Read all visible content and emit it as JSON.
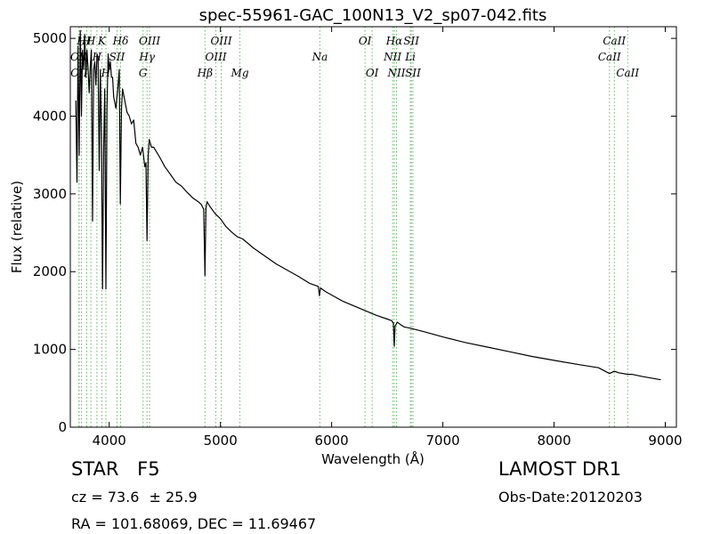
{
  "chart_data": {
    "type": "line",
    "title": "spec-55961-GAC_100N13_V2_sp07-042.fits",
    "xlabel": "Wavelength (Å)",
    "ylabel": "Flux (relative)",
    "xlim": [
      3650,
      9100
    ],
    "ylim": [
      0,
      5150
    ],
    "xticks": [
      4000,
      5000,
      6000,
      7000,
      8000,
      9000
    ],
    "yticks": [
      0,
      1000,
      2000,
      3000,
      4000,
      5000
    ],
    "grid": false,
    "series": [
      {
        "color": "#000000",
        "x": [
          3700,
          3710,
          3720,
          3730,
          3740,
          3750,
          3760,
          3770,
          3780,
          3790,
          3800,
          3810,
          3820,
          3830,
          3840,
          3850,
          3860,
          3870,
          3880,
          3890,
          3900,
          3910,
          3920,
          3930,
          3940,
          3950,
          3960,
          3970,
          3980,
          3990,
          4000,
          4010,
          4020,
          4030,
          4040,
          4060,
          4080,
          4090,
          4100,
          4110,
          4120,
          4140,
          4160,
          4180,
          4200,
          4220,
          4240,
          4260,
          4280,
          4300,
          4320,
          4330,
          4340,
          4350,
          4360,
          4380,
          4400,
          4450,
          4500,
          4550,
          4600,
          4650,
          4700,
          4750,
          4800,
          4830,
          4850,
          4861,
          4870,
          4880,
          4900,
          4950,
          5000,
          5050,
          5100,
          5150,
          5200,
          5300,
          5400,
          5500,
          5600,
          5700,
          5800,
          5880,
          5890,
          5900,
          5950,
          6000,
          6100,
          6200,
          6300,
          6400,
          6500,
          6540,
          6555,
          6563,
          6570,
          6590,
          6620,
          6650,
          6700,
          6800,
          6900,
          7000,
          7200,
          7400,
          7600,
          7800,
          8000,
          8200,
          8400,
          8498,
          8542,
          8580,
          8662,
          8700,
          8800,
          8960
        ],
        "values": [
          4200,
          3150,
          4900,
          3500,
          5100,
          4000,
          4850,
          4600,
          5050,
          4500,
          4850,
          4600,
          4300,
          4650,
          4850,
          2650,
          4600,
          4700,
          4400,
          4800,
          4750,
          3300,
          4600,
          3750,
          1780,
          3600,
          4350,
          1780,
          4100,
          4800,
          4600,
          4700,
          4500,
          4500,
          4250,
          4100,
          4400,
          4600,
          2870,
          4100,
          4350,
          4200,
          4050,
          4000,
          3900,
          3950,
          3650,
          3600,
          3500,
          3600,
          3350,
          3400,
          2400,
          3500,
          3700,
          3600,
          3600,
          3480,
          3350,
          3250,
          3150,
          3100,
          3020,
          2950,
          2900,
          2860,
          2800,
          1950,
          2820,
          2900,
          2850,
          2750,
          2680,
          2580,
          2510,
          2450,
          2420,
          2300,
          2200,
          2100,
          2020,
          1940,
          1850,
          1810,
          1690,
          1790,
          1740,
          1700,
          1620,
          1560,
          1500,
          1440,
          1390,
          1370,
          1340,
          1040,
          1300,
          1350,
          1320,
          1290,
          1275,
          1240,
          1200,
          1160,
          1090,
          1030,
          970,
          910,
          860,
          810,
          765,
          690,
          720,
          700,
          680,
          680,
          650,
          610
        ]
      }
    ],
    "spectral_lines": [
      {
        "label": "OII",
        "x": 3727,
        "row": 2
      },
      {
        "label": "OII",
        "x": 3729,
        "row": 3
      },
      {
        "label": "H",
        "x": 3750,
        "row": 1
      },
      {
        "label": "H",
        "x": 3798,
        "row": 1
      },
      {
        "label": "H",
        "x": 3835,
        "row": 1
      },
      {
        "label": "H",
        "x": 3889,
        "row": 2
      },
      {
        "label": "H",
        "x": 3970,
        "row": 3
      },
      {
        "label": "K",
        "x": 3934,
        "row": 1
      },
      {
        "label": "Hδ",
        "x": 4102,
        "row": 1
      },
      {
        "label": "SII",
        "x": 4070,
        "row": 2
      },
      {
        "label": "OIII",
        "x": 4363,
        "row": 1
      },
      {
        "label": "Hγ",
        "x": 4340,
        "row": 2
      },
      {
        "label": "G",
        "x": 4304,
        "row": 3
      },
      {
        "label": "Hβ",
        "x": 4861,
        "row": 3
      },
      {
        "label": "OIII",
        "x": 4959,
        "row": 4
      },
      {
        "label": "OIII",
        "x": 5007,
        "row": 1
      },
      {
        "label": "Mg",
        "x": 5175,
        "row": 3
      },
      {
        "label": "Na",
        "x": 5894,
        "row": 2
      },
      {
        "label": "OI",
        "x": 6300,
        "row": 1
      },
      {
        "label": "OI",
        "x": 6364,
        "row": 3
      },
      {
        "label": "NII",
        "x": 6548,
        "row": 2
      },
      {
        "label": "Hα",
        "x": 6563,
        "row": 1
      },
      {
        "label": "NII",
        "x": 6583,
        "row": 3
      },
      {
        "label": "SII",
        "x": 6716,
        "row": 1
      },
      {
        "label": "Li",
        "x": 6708,
        "row": 2
      },
      {
        "label": "SII",
        "x": 6731,
        "row": 3
      },
      {
        "label": "CaII",
        "x": 8498,
        "row": 2
      },
      {
        "label": "CaII",
        "x": 8542,
        "row": 1
      },
      {
        "label": "CaII",
        "x": 8662,
        "row": 3
      }
    ]
  },
  "info": {
    "class": "STAR",
    "subclass": "F5",
    "cz_value": "cz = 73.6",
    "cz_error": "± 25.9",
    "coords": "RA = 101.68069, DEC = 11.69467",
    "survey": "LAMOST DR1",
    "obs_date": "Obs-Date:20120203"
  },
  "colors": {
    "spectrum": "#000000",
    "line_marker": "#6ab46a",
    "axis": "#000000"
  }
}
